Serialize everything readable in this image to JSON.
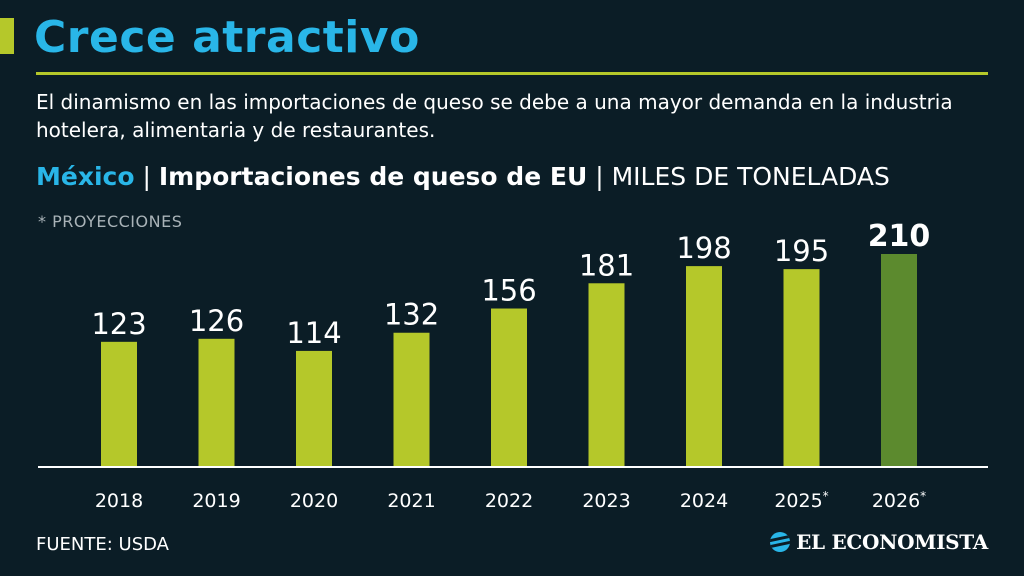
{
  "header": {
    "title": "Crece atractivo",
    "subtitle": "El dinamismo en las importaciones de queso se debe a una mayor demanda en la industria hotelera, alimentaria y de restaurantes."
  },
  "chart_heading": {
    "country": "México",
    "separator": "|",
    "series_title": "Importaciones de queso de EU",
    "unit": "MILES DE TONELADAS"
  },
  "note": "* PROYECCIONES",
  "source": "FUENTE: USDA",
  "brand": {
    "name": "EL ECONOMISTA",
    "icon": "el-economista-logo-icon"
  },
  "colors": {
    "background": "#0b1d26",
    "accent": "#b5c82a",
    "title": "#29b6e8",
    "bar": "#b5c82a",
    "bar_highlight": "#5c8a2e"
  },
  "chart_data": {
    "type": "bar",
    "title": "Importaciones de queso de EU",
    "xlabel": "",
    "ylabel": "MILES DE TONELADAS",
    "categories": [
      "2018",
      "2019",
      "2020",
      "2021",
      "2022",
      "2023",
      "2024",
      "2025*",
      "2026*"
    ],
    "values": [
      123,
      126,
      114,
      132,
      156,
      181,
      198,
      195,
      210
    ],
    "projected": [
      false,
      false,
      false,
      false,
      false,
      false,
      false,
      true,
      true
    ],
    "highlight_index": 8,
    "ylim": [
      0,
      210
    ],
    "grid": false,
    "legend": "none"
  }
}
